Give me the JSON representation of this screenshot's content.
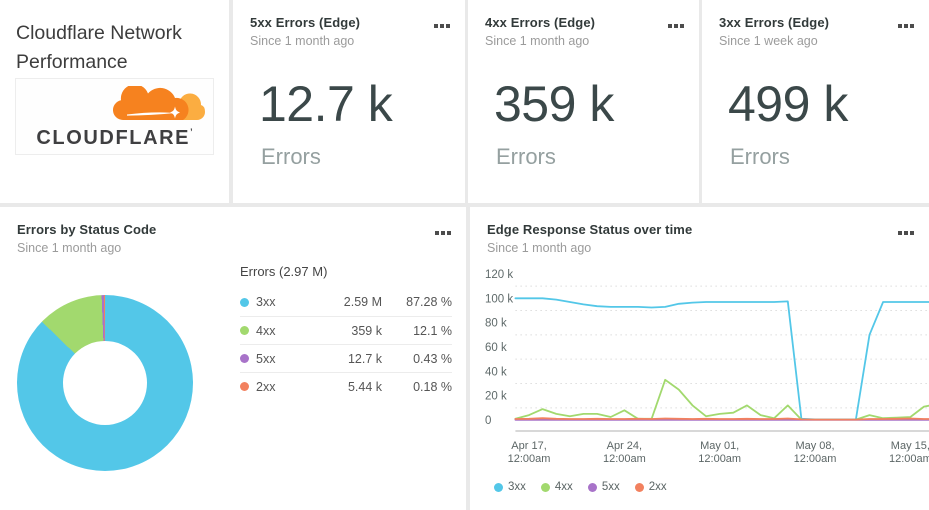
{
  "header": {
    "title_line1": "Cloudflare Network",
    "title_line2": "Performance",
    "logo_text": "CLOUDFLARE",
    "logo_tm": "’"
  },
  "stats": [
    {
      "title": "5xx Errors (Edge)",
      "subtitle": "Since 1 month ago",
      "value": "12.7 k",
      "unit": "Errors"
    },
    {
      "title": "4xx Errors (Edge)",
      "subtitle": "Since 1 month ago",
      "value": "359 k",
      "unit": "Errors"
    },
    {
      "title": "3xx Errors (Edge)",
      "subtitle": "Since 1 week ago",
      "value": "499 k",
      "unit": "Errors"
    }
  ],
  "pie_card": {
    "title": "Errors by Status Code",
    "subtitle": "Since 1 month ago",
    "legend_header": "Errors (2.97 M)"
  },
  "line_card": {
    "title": "Edge Response Status over time",
    "subtitle": "Since 1 month ago"
  },
  "colors": {
    "series_3xx": "#53c7e8",
    "series_4xx": "#a2d96e",
    "series_5xx": "#a873c9",
    "series_2xx": "#f2815f",
    "stat_text": "#3b4849",
    "card_bg": "#ffffff",
    "page_bg": "#e9e9e9",
    "grid_dotted": "#dcdcdc",
    "axis_spine": "#d8d8d8",
    "cloudflare_orange": "#f6821f",
    "cloudflare_light_orange": "#fbad41"
  },
  "chart_data": [
    {
      "type": "pie",
      "title": "Errors by Status Code",
      "subtitle": "Since 1 month ago",
      "total_label": "Errors (2.97 M)",
      "donut": true,
      "legend_position": "right",
      "slices": [
        {
          "label": "3xx",
          "value": 2590000,
          "value_label": "2.59 M",
          "pct": 87.28,
          "pct_label": "87.28 %",
          "color": "#53c7e8"
        },
        {
          "label": "4xx",
          "value": 359000,
          "value_label": "359 k",
          "pct": 12.1,
          "pct_label": "12.1 %",
          "color": "#a2d96e"
        },
        {
          "label": "5xx",
          "value": 12700,
          "value_label": "12.7 k",
          "pct": 0.43,
          "pct_label": "0.43 %",
          "color": "#a873c9"
        },
        {
          "label": "2xx",
          "value": 5440,
          "value_label": "5.44 k",
          "pct": 0.18,
          "pct_label": "0.18 %",
          "color": "#f2815f"
        }
      ]
    },
    {
      "type": "line",
      "title": "Edge Response Status over time",
      "subtitle": "Since 1 month ago",
      "unit": "k (thousands of responses)",
      "ylim_k": [
        0,
        120
      ],
      "grid": "dotted minor gridlines at odd 10k values",
      "legend_position": "bottom",
      "y_ticks": [
        {
          "value_k": 120,
          "label": "120 k"
        },
        {
          "value_k": 100,
          "label": "100 k"
        },
        {
          "value_k": 80,
          "label": "80 k"
        },
        {
          "value_k": 60,
          "label": "60 k"
        },
        {
          "value_k": 40,
          "label": "40 k"
        },
        {
          "value_k": 20,
          "label": "20 k"
        },
        {
          "value_k": 0,
          "label": "0"
        }
      ],
      "minor_gridlines_k": [
        110,
        90,
        70,
        50,
        30,
        10
      ],
      "x_ticks": [
        {
          "day": 1,
          "line1": "Apr 17,",
          "line2": "12:00am"
        },
        {
          "day": 8,
          "line1": "Apr 24,",
          "line2": "12:00am"
        },
        {
          "day": 15,
          "line1": "May 01,",
          "line2": "12:00am"
        },
        {
          "day": 22,
          "line1": "May 08,",
          "line2": "12:00am"
        },
        {
          "day": 29,
          "line1": "May 15,",
          "line2": "12:00am"
        }
      ],
      "series": [
        {
          "name": "3xx",
          "color": "#53c7e8",
          "values_k": [
            100,
            100,
            100,
            99,
            97,
            95,
            93.5,
            93,
            93,
            93,
            92.5,
            93,
            95.5,
            96.5,
            97,
            97,
            97,
            97,
            97,
            97,
            97.5,
            1,
            0.5,
            0.5,
            0.5,
            0.5,
            70,
            97,
            97,
            97,
            97,
            97
          ]
        },
        {
          "name": "4xx",
          "color": "#a2d96e",
          "values_k": [
            1,
            4,
            9,
            5,
            3,
            5,
            5,
            2.5,
            8,
            1,
            1,
            33,
            25,
            12,
            3,
            5,
            6,
            12,
            4,
            1.5,
            12,
            0.3,
            0.3,
            0.3,
            0.3,
            0.3,
            4,
            1.5,
            2,
            2.5,
            11,
            13
          ]
        },
        {
          "name": "5xx",
          "color": "#a873c9",
          "values_k": [
            0.2,
            0.2,
            0.2,
            0.2,
            0.2,
            0.2,
            0.2,
            0.2,
            0.2,
            0.2,
            0.2,
            0.2,
            0.2,
            0.2,
            0.2,
            0.2,
            0.2,
            0.2,
            0.2,
            0.2,
            0.2,
            0.2,
            0.2,
            0.2,
            0.2,
            0.2,
            0.2,
            0.2,
            0.2,
            0.2,
            0.2,
            0.2
          ]
        },
        {
          "name": "2xx",
          "color": "#f2815f",
          "values_k": [
            0.8,
            1,
            1.5,
            1,
            0.8,
            0.8,
            1,
            0.8,
            0.8,
            1,
            0.8,
            1.2,
            1,
            0.8,
            1,
            0.8,
            0.8,
            1,
            0.8,
            0.8,
            1.2,
            0.5,
            0.3,
            0.3,
            0.3,
            0.3,
            0.8,
            0.8,
            1,
            1.2,
            0.8,
            0.8
          ]
        }
      ]
    }
  ]
}
